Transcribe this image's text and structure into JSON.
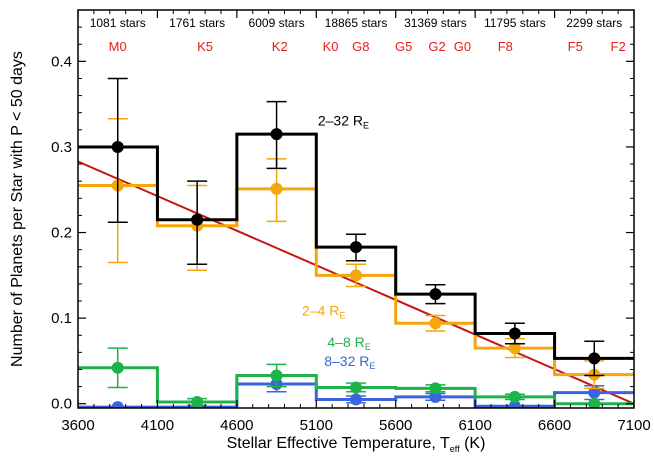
{
  "chart_data": {
    "type": "line",
    "xlabel": "Stellar Effective Temperature, T",
    "xlabel_sub": "eff",
    "xlabel_unit": " (K)",
    "ylabel": "Number of Planets per Star with P < 50 days",
    "xlim": [
      3600,
      7100
    ],
    "ylim": [
      -0.005,
      0.46
    ],
    "x_ticks": [
      3600,
      4100,
      4600,
      5100,
      5600,
      6100,
      6600,
      7100
    ],
    "y_ticks": [
      0.0,
      0.1,
      0.2,
      0.3,
      0.4
    ],
    "y_tick_labels": [
      "0.0",
      "0.1",
      "0.2",
      "0.3",
      "0.4"
    ],
    "bin_edges": [
      3600,
      4100,
      4600,
      5100,
      5600,
      6100,
      6600,
      7100
    ],
    "bin_centers": [
      3850,
      4350,
      4850,
      5350,
      5850,
      6350,
      6850
    ],
    "star_counts": [
      {
        "label": "1081 stars",
        "x": 3850
      },
      {
        "label": "1761 stars",
        "x": 4350
      },
      {
        "label": "6009 stars",
        "x": 4850
      },
      {
        "label": "18865 stars",
        "x": 5350
      },
      {
        "label": "31369 stars",
        "x": 5850
      },
      {
        "label": "11795 stars",
        "x": 6350
      },
      {
        "label": "2299 stars",
        "x": 6850
      }
    ],
    "spectral_types": [
      {
        "label": "M0",
        "x": 3850
      },
      {
        "label": "K5",
        "x": 4400
      },
      {
        "label": "K2",
        "x": 4870
      },
      {
        "label": "K0",
        "x": 5190
      },
      {
        "label": "G8",
        "x": 5380
      },
      {
        "label": "G5",
        "x": 5650
      },
      {
        "label": "G2",
        "x": 5860
      },
      {
        "label": "G0",
        "x": 6020
      },
      {
        "label": "F8",
        "x": 6290
      },
      {
        "label": "F5",
        "x": 6730
      },
      {
        "label": "F2",
        "x": 7000
      }
    ],
    "series": [
      {
        "name": "2–32 R",
        "name_sub": "E",
        "color": "#000000",
        "values": [
          0.3,
          0.215,
          0.315,
          0.183,
          0.128,
          0.082,
          0.053
        ],
        "err_up": [
          0.08,
          0.045,
          0.038,
          0.015,
          0.011,
          0.012,
          0.02
        ],
        "err_down": [
          0.088,
          0.052,
          0.04,
          0.016,
          0.011,
          0.012,
          0.02
        ],
        "label_pos": {
          "x": 5110,
          "y": 0.325
        }
      },
      {
        "name": "2–4 R",
        "name_sub": "E",
        "color": "#f5a60d",
        "values": [
          0.255,
          0.208,
          0.251,
          0.15,
          0.094,
          0.065,
          0.034
        ],
        "err_up": [
          0.078,
          0.047,
          0.035,
          0.013,
          0.009,
          0.011,
          0.016
        ],
        "err_down": [
          0.09,
          0.052,
          0.038,
          0.013,
          0.009,
          0.011,
          0.016
        ],
        "label_pos": {
          "x": 5010,
          "y": 0.103
        }
      },
      {
        "name": "4–8 R",
        "name_sub": "E",
        "color": "#1db34b",
        "values": [
          0.042,
          0.002,
          0.033,
          0.019,
          0.018,
          0.008,
          0.0
        ],
        "err_up": [
          0.023,
          0.004,
          0.013,
          0.005,
          0.004,
          0.003,
          0.0
        ],
        "err_down": [
          0.023,
          0.004,
          0.013,
          0.005,
          0.004,
          0.003,
          0.0
        ],
        "label_pos": {
          "x": 5170,
          "y": 0.066
        }
      },
      {
        "name": "8–32 R",
        "name_sub": "E",
        "color": "#3b63e0",
        "values": [
          -0.004,
          -0.004,
          0.023,
          0.005,
          0.008,
          -0.003,
          0.013
        ],
        "err_up": [
          0.0,
          0.0,
          0.009,
          0.004,
          0.004,
          0.0,
          0.008
        ],
        "err_down": [
          0.0,
          0.0,
          0.009,
          0.004,
          0.004,
          0.0,
          0.008
        ],
        "label_pos": {
          "x": 5150,
          "y": 0.044
        }
      }
    ],
    "fit_line": {
      "color": "#c81515",
      "x": [
        3600,
        7100
      ],
      "y": [
        0.283,
        0.0
      ]
    }
  }
}
